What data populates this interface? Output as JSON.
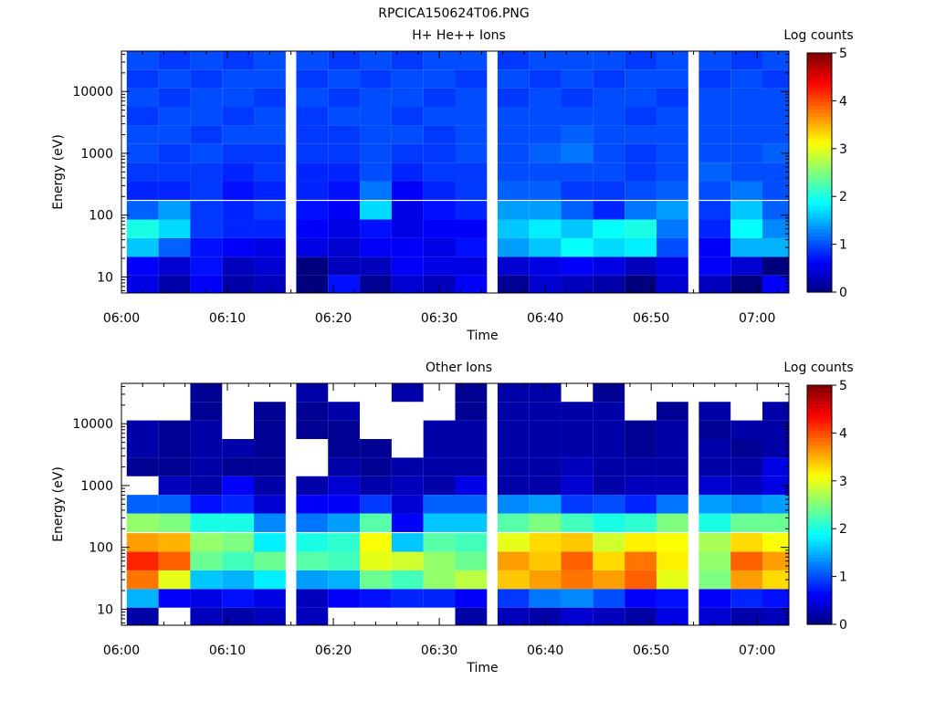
{
  "figure": {
    "title": "RPCICA150624T06.PNG"
  },
  "chart_data": [
    {
      "type": "heatmap",
      "title": "H+ He++ Ions",
      "xlabel": "Time",
      "ylabel": "Energy (eV)",
      "colorbar_label": "Log counts",
      "x_ticks": [
        "06:00",
        "06:10",
        "06:20",
        "06:30",
        "06:40",
        "06:50",
        "07:00"
      ],
      "x_range": [
        "06:00",
        "07:03"
      ],
      "y_scale": "log",
      "y_ticks": [
        10,
        100,
        1000,
        10000
      ],
      "y_range": [
        5.5,
        45000
      ],
      "colorbar_range": [
        0,
        5
      ],
      "colorbar_ticks": [
        0,
        1,
        2,
        3,
        4,
        5
      ],
      "colormap": [
        "#00007f",
        "#0000ff",
        "#007fff",
        "#00ffff",
        "#7fff7f",
        "#ffff00",
        "#ff7f00",
        "#ff0000",
        "#7f0000"
      ],
      "time_bins": [
        "06:02",
        "06:05",
        "06:08",
        "06:11",
        "06:14",
        "06:18",
        "06:21",
        "06:24",
        "06:27",
        "06:30",
        "06:33",
        "06:37",
        "06:40",
        "06:43",
        "06:46",
        "06:49",
        "06:52",
        "06:56",
        "06:59",
        "07:02"
      ],
      "energy_bins": [
        7.5,
        15,
        30,
        60,
        120,
        250,
        500,
        1000,
        2000,
        4000,
        8000,
        16000,
        32000
      ],
      "values": [
        [
          0.5,
          0.2,
          0.6,
          0.2,
          0.3,
          0.0,
          0.7,
          0.1,
          0.4,
          0.3,
          0.6,
          0.1,
          0.4,
          0.3,
          0.2,
          0.0,
          0.4,
          0.3,
          0.0,
          0.6
        ],
        [
          0.6,
          0.4,
          0.7,
          0.3,
          0.4,
          0.0,
          0.3,
          0.3,
          0.6,
          0.5,
          0.5,
          0.4,
          0.5,
          0.6,
          0.5,
          0.3,
          0.5,
          0.6,
          0.4,
          0.0
        ],
        [
          1.6,
          1.1,
          0.7,
          0.6,
          0.5,
          0.5,
          0.4,
          0.6,
          0.6,
          0.5,
          0.7,
          1.4,
          1.6,
          1.9,
          1.7,
          1.8,
          1.0,
          0.6,
          1.5,
          1.5
        ],
        [
          2.0,
          1.7,
          0.9,
          0.8,
          0.8,
          0.6,
          0.5,
          0.7,
          0.5,
          0.6,
          0.6,
          1.6,
          1.8,
          1.6,
          1.9,
          2.0,
          1.2,
          0.8,
          1.9,
          1.3
        ],
        [
          1.1,
          1.4,
          0.9,
          0.8,
          0.9,
          0.7,
          0.6,
          1.7,
          0.5,
          0.7,
          0.8,
          1.4,
          1.4,
          1.1,
          0.8,
          1.2,
          1.4,
          0.9,
          1.6,
          1.1
        ],
        [
          0.8,
          0.8,
          0.9,
          0.7,
          0.8,
          0.8,
          0.7,
          1.2,
          0.6,
          0.8,
          0.9,
          1.1,
          1.1,
          0.9,
          0.9,
          1.0,
          1.1,
          1.0,
          1.2,
          1.0
        ],
        [
          0.9,
          0.9,
          0.9,
          0.8,
          0.9,
          0.8,
          0.8,
          1.0,
          0.8,
          0.9,
          0.9,
          1.0,
          1.0,
          1.0,
          1.0,
          0.9,
          1.0,
          1.1,
          1.0,
          1.0
        ],
        [
          1.0,
          0.9,
          1.0,
          0.9,
          0.9,
          0.9,
          0.9,
          1.0,
          0.9,
          0.9,
          1.0,
          1.0,
          1.1,
          1.2,
          1.0,
          0.9,
          1.0,
          1.0,
          1.0,
          1.1
        ],
        [
          1.0,
          1.0,
          0.9,
          1.0,
          1.0,
          0.9,
          0.9,
          1.0,
          1.0,
          0.9,
          1.0,
          1.0,
          1.0,
          1.1,
          1.0,
          1.0,
          1.0,
          1.0,
          1.0,
          1.0
        ],
        [
          0.9,
          1.0,
          1.0,
          0.9,
          1.0,
          0.9,
          1.0,
          1.0,
          0.9,
          1.0,
          1.0,
          1.0,
          1.0,
          1.0,
          1.0,
          0.9,
          1.0,
          1.0,
          1.0,
          1.0
        ],
        [
          1.0,
          0.9,
          1.0,
          1.0,
          0.9,
          1.0,
          0.9,
          1.0,
          1.0,
          0.9,
          1.0,
          0.9,
          1.0,
          0.9,
          1.0,
          1.0,
          0.9,
          1.0,
          1.0,
          1.0
        ],
        [
          0.9,
          1.0,
          0.9,
          1.0,
          1.0,
          0.9,
          1.0,
          0.9,
          1.0,
          1.0,
          0.9,
          1.0,
          0.9,
          1.0,
          0.9,
          1.0,
          1.0,
          0.9,
          1.0,
          0.9
        ],
        [
          1.0,
          0.9,
          1.0,
          0.9,
          1.0,
          1.0,
          0.9,
          1.0,
          0.9,
          1.0,
          1.0,
          0.9,
          1.0,
          1.0,
          1.0,
          0.9,
          1.0,
          1.0,
          0.9,
          1.0
        ]
      ]
    },
    {
      "type": "heatmap",
      "title": "Other Ions",
      "xlabel": "Time",
      "ylabel": "Energy (eV)",
      "colorbar_label": "Log counts",
      "x_ticks": [
        "06:00",
        "06:10",
        "06:20",
        "06:30",
        "06:40",
        "06:50",
        "07:00"
      ],
      "x_range": [
        "06:00",
        "07:03"
      ],
      "y_scale": "log",
      "y_ticks": [
        10,
        100,
        1000,
        10000
      ],
      "y_range": [
        5.5,
        45000
      ],
      "colorbar_range": [
        0,
        5
      ],
      "colorbar_ticks": [
        0,
        1,
        2,
        3,
        4,
        5
      ],
      "colormap": [
        "#00007f",
        "#0000ff",
        "#007fff",
        "#00ffff",
        "#7fff7f",
        "#ffff00",
        "#ff7f00",
        "#ff0000",
        "#7f0000"
      ],
      "time_bins": [
        "06:02",
        "06:05",
        "06:08",
        "06:11",
        "06:14",
        "06:18",
        "06:21",
        "06:24",
        "06:27",
        "06:30",
        "06:33",
        "06:37",
        "06:40",
        "06:43",
        "06:46",
        "06:49",
        "06:52",
        "06:56",
        "06:59",
        "07:02"
      ],
      "energy_bins": [
        7.5,
        15,
        30,
        60,
        120,
        250,
        500,
        1000,
        2000,
        4000,
        8000,
        16000,
        32000
      ],
      "values": [
        [
          0.2,
          null,
          0.3,
          0.2,
          0.3,
          0.3,
          null,
          null,
          null,
          null,
          0.2,
          0.3,
          0.2,
          0.4,
          0.3,
          0.2,
          0.5,
          0.4,
          0.2,
          0.3
        ],
        [
          1.5,
          0.6,
          0.5,
          0.7,
          0.5,
          0.3,
          0.6,
          0.7,
          0.8,
          0.8,
          0.6,
          0.9,
          1.2,
          1.3,
          1.0,
          0.6,
          0.7,
          0.6,
          0.8,
          0.7
        ],
        [
          3.8,
          3.0,
          1.6,
          1.5,
          1.8,
          1.4,
          1.5,
          2.4,
          2.2,
          2.6,
          2.8,
          3.4,
          3.6,
          3.8,
          3.6,
          3.9,
          3.0,
          2.5,
          3.6,
          3.3
        ],
        [
          4.2,
          3.9,
          2.4,
          2.2,
          2.4,
          2.3,
          2.2,
          3.0,
          2.9,
          2.6,
          2.4,
          3.6,
          3.4,
          3.9,
          3.3,
          3.8,
          3.2,
          2.6,
          3.9,
          3.6
        ],
        [
          3.6,
          3.5,
          2.6,
          2.5,
          1.8,
          2.0,
          2.1,
          3.1,
          1.6,
          2.3,
          2.2,
          3.0,
          3.3,
          3.4,
          2.9,
          3.2,
          3.1,
          2.7,
          3.3,
          3.1
        ],
        [
          2.6,
          2.5,
          2.0,
          2.0,
          1.3,
          1.2,
          1.4,
          2.3,
          0.6,
          1.6,
          1.6,
          2.3,
          2.5,
          2.2,
          2.0,
          2.1,
          2.5,
          2.0,
          2.4,
          2.4
        ],
        [
          1.1,
          1.1,
          0.7,
          0.8,
          0.4,
          0.6,
          0.6,
          0.9,
          0.4,
          1.1,
          1.1,
          1.3,
          1.4,
          0.9,
          1.0,
          0.8,
          1.2,
          1.4,
          1.3,
          1.4
        ],
        [
          null,
          0.3,
          0.2,
          0.6,
          0.2,
          0.2,
          0.4,
          0.2,
          0.3,
          0.2,
          0.5,
          0.2,
          0.2,
          0.4,
          0.2,
          0.3,
          0.3,
          0.4,
          0.3,
          0.5
        ],
        [
          0.1,
          0.1,
          0.2,
          0.1,
          0.1,
          null,
          0.2,
          0.1,
          0.2,
          0.2,
          0.2,
          0.2,
          0.2,
          0.3,
          0.2,
          0.2,
          0.2,
          0.2,
          0.2,
          0.5
        ],
        [
          0.2,
          0.1,
          0.2,
          0.2,
          0.1,
          null,
          0.1,
          0.1,
          null,
          0.2,
          0.2,
          0.2,
          0.2,
          0.2,
          0.2,
          0.1,
          0.2,
          0.2,
          0.1,
          0.2
        ],
        [
          0.2,
          0.1,
          0.2,
          null,
          0.1,
          0.1,
          0.1,
          null,
          null,
          0.2,
          0.2,
          0.2,
          0.2,
          0.2,
          0.2,
          0.1,
          0.2,
          0.1,
          0.2,
          0.2
        ],
        [
          null,
          null,
          0.1,
          null,
          0.1,
          0.1,
          0.2,
          null,
          null,
          null,
          0.1,
          0.2,
          0.2,
          0.2,
          0.2,
          null,
          0.1,
          0.2,
          null,
          0.2
        ],
        [
          null,
          null,
          0.1,
          null,
          null,
          0.2,
          null,
          null,
          0.2,
          null,
          0.1,
          0.2,
          0.2,
          null,
          0.1,
          null,
          null,
          null,
          null,
          null
        ]
      ]
    }
  ]
}
